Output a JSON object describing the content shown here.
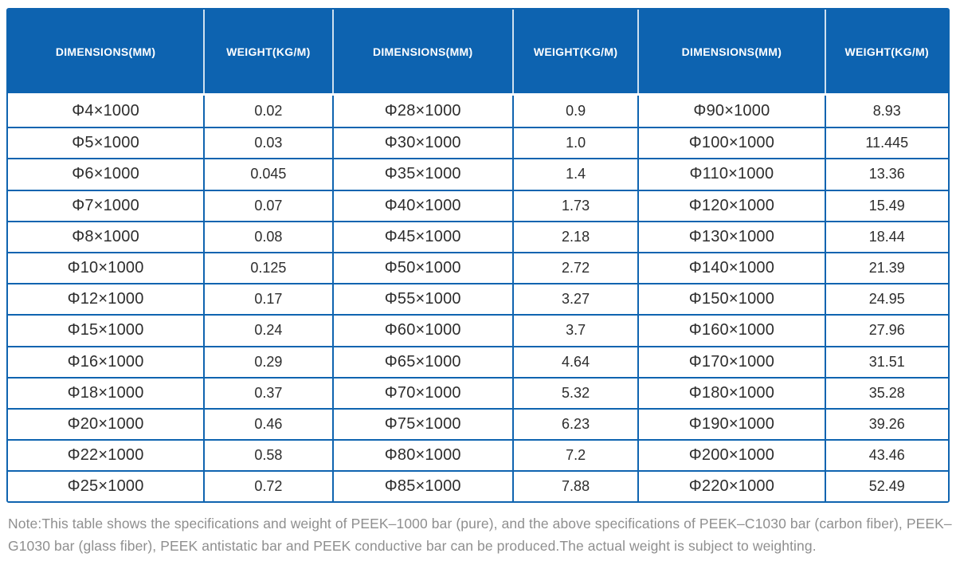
{
  "theme": {
    "header_bg": "#0d63b0",
    "header_text": "#ffffff",
    "border_color": "#0f64b0",
    "body_text": "#2d2d2d",
    "note_text": "#8f8f8f",
    "page_bg": "#ffffff"
  },
  "table": {
    "columns": [
      "DIMENSIONS(MM)",
      "WEIGHT(KG/M)",
      "DIMENSIONS(MM)",
      "WEIGHT(KG/M)",
      "DIMENSIONS(MM)",
      "WEIGHT(KG/M)"
    ],
    "rows": [
      [
        "Φ4×1000",
        "0.02",
        "Φ28×1000",
        "0.9",
        "Φ90×1000",
        "8.93"
      ],
      [
        "Φ5×1000",
        "0.03",
        "Φ30×1000",
        "1.0",
        "Φ100×1000",
        "11.445"
      ],
      [
        "Φ6×1000",
        "0.045",
        "Φ35×1000",
        "1.4",
        "Φ110×1000",
        "13.36"
      ],
      [
        "Φ7×1000",
        "0.07",
        "Φ40×1000",
        "1.73",
        "Φ120×1000",
        "15.49"
      ],
      [
        "Φ8×1000",
        "0.08",
        "Φ45×1000",
        "2.18",
        "Φ130×1000",
        "18.44"
      ],
      [
        "Φ10×1000",
        "0.125",
        "Φ50×1000",
        "2.72",
        "Φ140×1000",
        "21.39"
      ],
      [
        "Φ12×1000",
        "0.17",
        "Φ55×1000",
        "3.27",
        "Φ150×1000",
        "24.95"
      ],
      [
        "Φ15×1000",
        "0.24",
        "Φ60×1000",
        "3.7",
        "Φ160×1000",
        "27.96"
      ],
      [
        "Φ16×1000",
        "0.29",
        "Φ65×1000",
        "4.64",
        "Φ170×1000",
        "31.51"
      ],
      [
        "Φ18×1000",
        "0.37",
        "Φ70×1000",
        "5.32",
        "Φ180×1000",
        "35.28"
      ],
      [
        "Φ20×1000",
        "0.46",
        "Φ75×1000",
        "6.23",
        "Φ190×1000",
        "39.26"
      ],
      [
        "Φ22×1000",
        "0.58",
        "Φ80×1000",
        "7.2",
        "Φ200×1000",
        "43.46"
      ],
      [
        "Φ25×1000",
        "0.72",
        "Φ85×1000",
        "7.88",
        "Φ220×1000",
        "52.49"
      ]
    ]
  },
  "note": {
    "text": "Note:This table shows the specifications and weight of PEEK–1000 bar (pure), and the above specifications of PEEK–C1030 bar (carbon fiber), PEEK–G1030 bar (glass fiber), PEEK antistatic bar and PEEK conductive bar can be produced.The actual weight is subject to weighting."
  }
}
